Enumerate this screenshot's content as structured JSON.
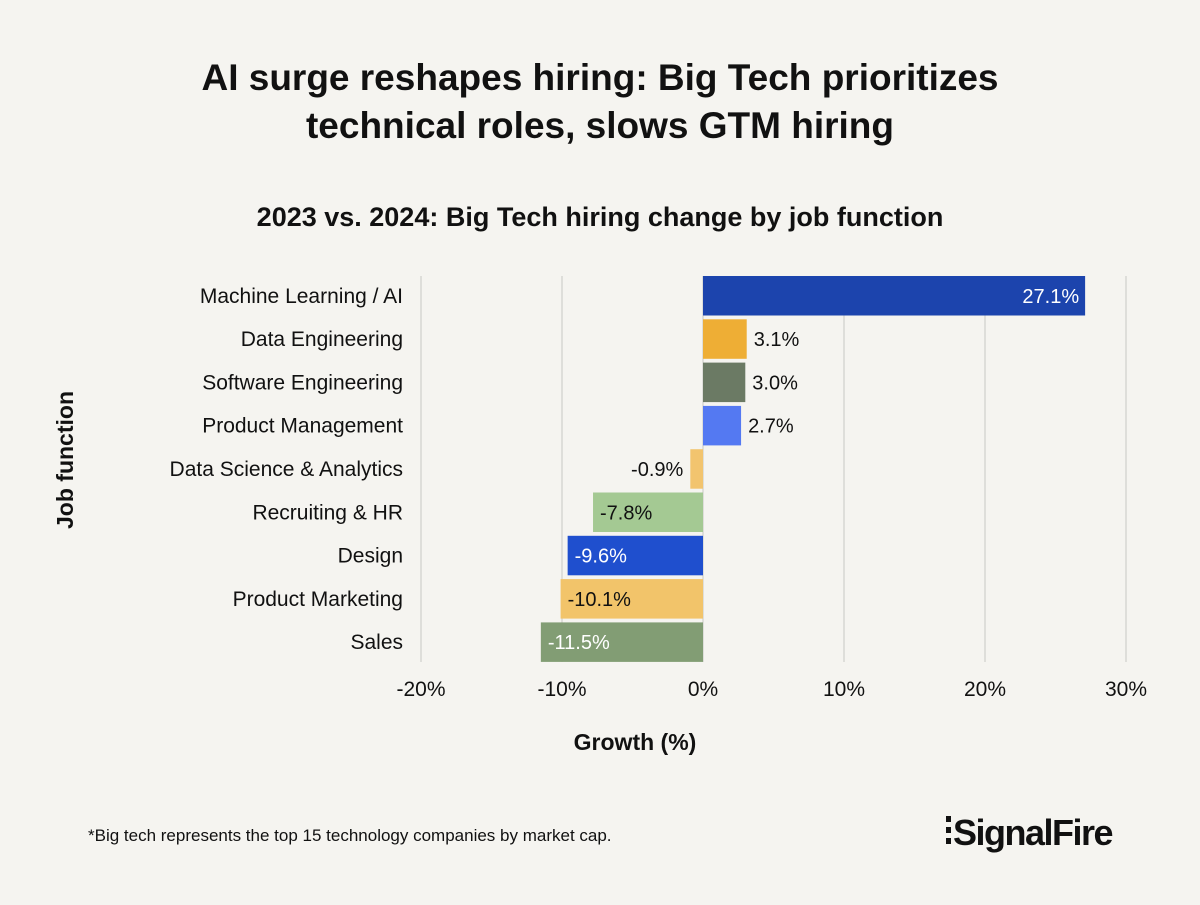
{
  "title_lines": [
    "AI surge reshapes hiring: Big Tech prioritizes",
    "technical roles, slows GTM hiring"
  ],
  "footnote": "*Big tech represents the top 15 technology companies by market cap.",
  "logo": "SignalFire",
  "chart_data": {
    "type": "bar",
    "orientation": "horizontal",
    "title": "2023 vs. 2024: Big Tech hiring change by job function",
    "xlabel": "Growth (%)",
    "ylabel": "Job function",
    "xlim": [
      -20,
      30
    ],
    "xticks": [
      -20,
      -10,
      0,
      10,
      20,
      30
    ],
    "xtick_labels": [
      "-20%",
      "-10%",
      "0%",
      "10%",
      "20%",
      "30%"
    ],
    "grid": "vertical",
    "categories": [
      "Machine Learning / AI",
      "Data Engineering",
      "Software Engineering",
      "Product Management",
      "Data Science & Analytics",
      "Recruiting & HR",
      "Design",
      "Product Marketing",
      "Sales"
    ],
    "values": [
      27.1,
      3.1,
      3.0,
      2.7,
      -0.9,
      -7.8,
      -9.6,
      -10.1,
      -11.5
    ],
    "data_labels": [
      "27.1%",
      "3.1%",
      "3.0%",
      "2.7%",
      "-0.9%",
      "-7.8%",
      "-9.6%",
      "-10.1%",
      "-11.5%"
    ],
    "colors": [
      "#1c44ad",
      "#eeae35",
      "#6b7a64",
      "#5479f2",
      "#f2c46e",
      "#a4c993",
      "#1f4fce",
      "#f2c46a",
      "#829d74"
    ]
  }
}
